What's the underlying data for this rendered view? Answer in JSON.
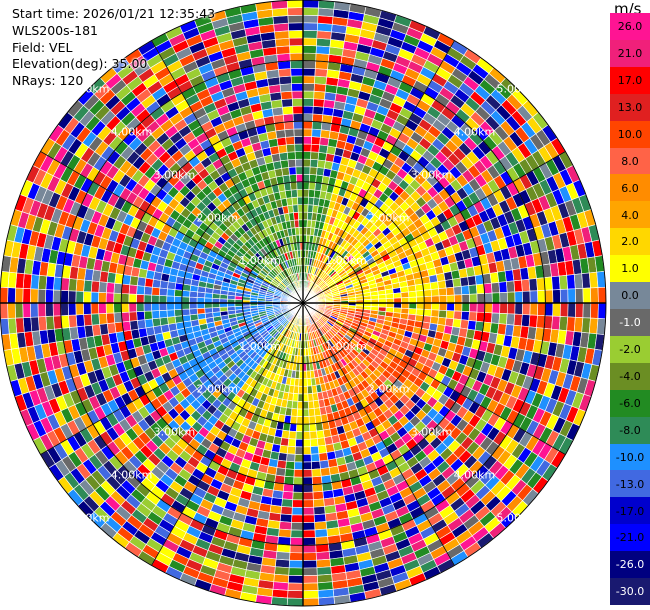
{
  "info": {
    "start_time": "Start time: 2026/01/21 12:35:43",
    "instrument": "WLS200s-181",
    "field": "Field: VEL",
    "elevation": "Elevation(deg): 35.00",
    "nrays": "NRays: 120"
  },
  "colorbar": {
    "unit": "m/s",
    "segments": [
      {
        "label": "26.0",
        "color": "#ff1493",
        "text": "#000000"
      },
      {
        "label": "21.0",
        "color": "#f0207a",
        "text": "#000000"
      },
      {
        "label": "17.0",
        "color": "#ff0000",
        "text": "#000000"
      },
      {
        "label": "13.0",
        "color": "#e02020",
        "text": "#000000"
      },
      {
        "label": "10.0",
        "color": "#ff4500",
        "text": "#000000"
      },
      {
        "label": "8.0",
        "color": "#ff6347",
        "text": "#000000"
      },
      {
        "label": "6.0",
        "color": "#ff8c00",
        "text": "#000000"
      },
      {
        "label": "4.0",
        "color": "#ffa500",
        "text": "#000000"
      },
      {
        "label": "2.0",
        "color": "#ffd700",
        "text": "#000000"
      },
      {
        "label": "1.0",
        "color": "#ffff00",
        "text": "#000000"
      },
      {
        "label": "0.0",
        "color": "#778899",
        "text": "#000000"
      },
      {
        "label": "-1.0",
        "color": "#696969",
        "text": "#ffffff"
      },
      {
        "label": "-2.0",
        "color": "#9acd32",
        "text": "#000000"
      },
      {
        "label": "-4.0",
        "color": "#6b8e23",
        "text": "#000000"
      },
      {
        "label": "-6.0",
        "color": "#228b22",
        "text": "#000000"
      },
      {
        "label": "-8.0",
        "color": "#2e8b57",
        "text": "#000000"
      },
      {
        "label": "-10.0",
        "color": "#1e90ff",
        "text": "#000000"
      },
      {
        "label": "-13.0",
        "color": "#4169e1",
        "text": "#000000"
      },
      {
        "label": "-17.0",
        "color": "#0000cd",
        "text": "#000000"
      },
      {
        "label": "-21.0",
        "color": "#0000ff",
        "text": "#000000"
      },
      {
        "label": "-26.0",
        "color": "#000080",
        "text": "#ffffff"
      },
      {
        "label": "-30.0",
        "color": "#191970",
        "text": "#ffffff"
      }
    ]
  },
  "chart_data": {
    "type": "heatmap",
    "subtype": "polar PPI",
    "field": "VEL",
    "units": "m/s",
    "elevation_deg": 35.0,
    "n_rays": 120,
    "range_km": [
      0,
      5
    ],
    "range_rings_km": [
      1,
      2,
      3,
      4,
      5
    ],
    "ring_labels": [
      "1.00km",
      "2.00km",
      "3.00km",
      "4.00km",
      "5.00km"
    ],
    "spokes_deg": [
      0,
      30,
      60,
      90,
      120,
      150,
      180,
      210,
      240,
      270,
      300,
      330
    ],
    "pattern": {
      "inner_range_km": 2.5,
      "northeast": "positive (yellow/gold)",
      "southeast": "positive (orange/red)",
      "southwest": "mixed (yellow/green)",
      "west": "negative (blue)",
      "northwest": "negative (green)",
      "outer": "noise"
    }
  }
}
